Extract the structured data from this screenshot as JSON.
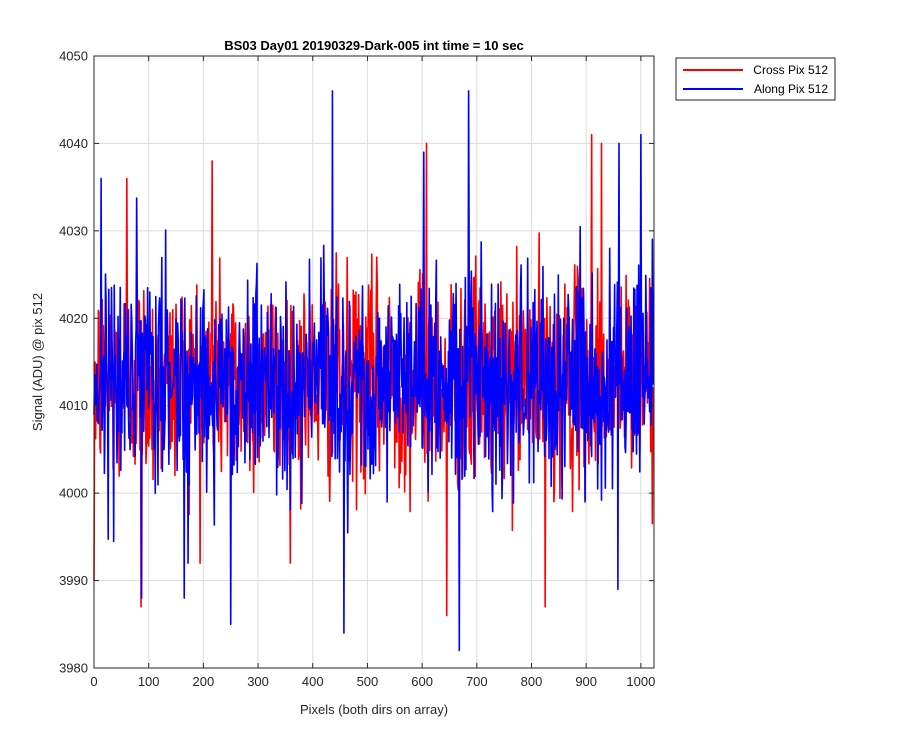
{
  "chart_data": {
    "type": "line",
    "title": "BS03 Day01 20190329-Dark-005 int time = 10 sec",
    "xlabel": "Pixels (both dirs on array)",
    "ylabel": "Signal (ADU) @ pix 512",
    "xlim": [
      0,
      1024
    ],
    "ylim": [
      3980,
      4050
    ],
    "x_ticks": [
      0,
      100,
      200,
      300,
      400,
      500,
      600,
      700,
      800,
      900,
      1000
    ],
    "y_ticks": [
      3980,
      3990,
      4000,
      4010,
      4020,
      4030,
      4040,
      4050
    ],
    "grid": true,
    "legend_position": "outside-top-right",
    "noise_model": {
      "n_points": 1024,
      "mean": 4013,
      "std": 6
    },
    "series": [
      {
        "name": "Cross Pix 512",
        "color": "#ff0000",
        "peaks": [
          [
            0,
            3990
          ],
          [
            60,
            4036
          ],
          [
            86,
            3987
          ],
          [
            216,
            4038
          ],
          [
            608,
            4040
          ],
          [
            645,
            3986
          ],
          [
            825,
            3987
          ],
          [
            910,
            4041
          ],
          [
            928,
            4040
          ]
        ]
      },
      {
        "name": "Along Pix 512",
        "color": "#0000ff",
        "peaks": [
          [
            13,
            4036
          ],
          [
            87,
            3988
          ],
          [
            165,
            3988
          ],
          [
            250,
            3985
          ],
          [
            436,
            4046
          ],
          [
            457,
            3984
          ],
          [
            603,
            4039
          ],
          [
            668,
            3982
          ],
          [
            685,
            4046
          ],
          [
            958,
            3989
          ],
          [
            960,
            4040
          ],
          [
            1000,
            4041
          ]
        ]
      }
    ]
  }
}
